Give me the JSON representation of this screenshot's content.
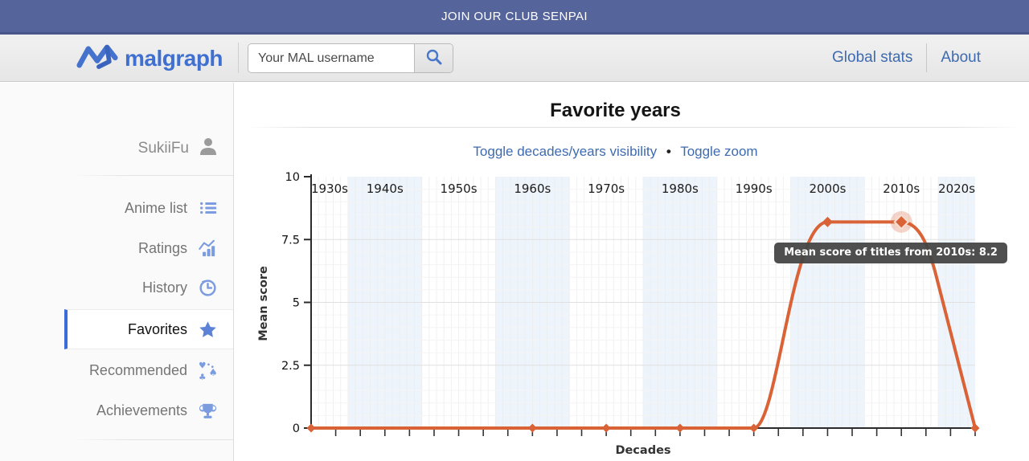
{
  "banner": {
    "text": "JOIN OUR CLUB SENPAI"
  },
  "header": {
    "logo_text": "malgraph",
    "search": {
      "placeholder": "Your MAL username"
    },
    "nav": [
      {
        "label": "Global stats"
      },
      {
        "label": "About"
      }
    ]
  },
  "sidebar": {
    "username": "SukiiFu",
    "items": [
      {
        "label": "Anime list",
        "icon": "list-icon",
        "active": false
      },
      {
        "label": "Ratings",
        "icon": "bar-chart-icon",
        "active": false
      },
      {
        "label": "History",
        "icon": "history-icon",
        "active": false
      },
      {
        "label": "Favorites",
        "icon": "star-icon",
        "active": true
      },
      {
        "label": "Recommended",
        "icon": "card-suits-icon",
        "active": false
      },
      {
        "label": "Achievements",
        "icon": "trophy-icon",
        "active": false
      }
    ]
  },
  "main": {
    "title": "Favorite years",
    "toggle_links": [
      {
        "label": "Toggle decades/years visibility"
      },
      {
        "label": "Toggle zoom"
      }
    ],
    "toggle_separator": "•"
  },
  "chart_data": {
    "type": "line",
    "title": "Favorite years",
    "xlabel": "Decades",
    "ylabel": "Mean score",
    "categories": [
      "1930s",
      "1940s",
      "1950s",
      "1960s",
      "1970s",
      "1980s",
      "1990s",
      "2000s",
      "2010s",
      "2020s"
    ],
    "values": [
      0,
      0,
      0,
      0,
      0,
      0,
      0,
      8.2,
      8.2,
      0
    ],
    "marker_indices": [
      0,
      3,
      4,
      5,
      6,
      7,
      8,
      9
    ],
    "highlight_index": 8,
    "tooltip": "Mean score of titles from 2010s: 8.2",
    "ylim": [
      0,
      10
    ],
    "yticks": [
      0,
      2.5,
      5,
      7.5,
      10
    ],
    "ytick_labels": [
      "0",
      "2.5",
      "5",
      "7.5",
      "10"
    ],
    "shaded_band_indices": [
      1,
      3,
      5,
      7,
      9
    ],
    "grid": true,
    "legend": "none",
    "colors": {
      "line": "#d96236",
      "band": "#eef4fb",
      "tooltip_bg": "#464646",
      "accent": "#3e6bb0"
    }
  }
}
